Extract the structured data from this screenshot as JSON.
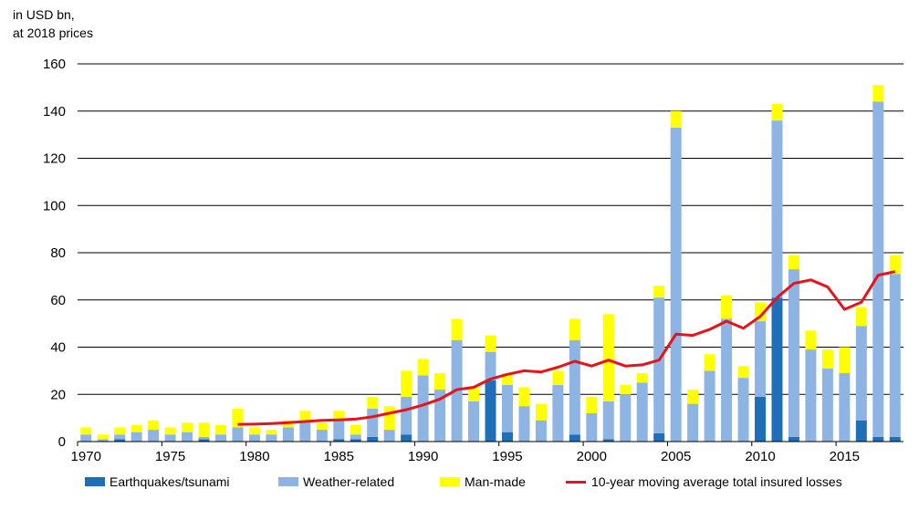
{
  "chart_data": {
    "type": "bar",
    "stacked": true,
    "unit_line1": "in USD bn,",
    "unit_line2": "at 2018 prices",
    "ylim": [
      0,
      160
    ],
    "yticks": [
      "0",
      "20",
      "40",
      "60",
      "80",
      "100",
      "120",
      "140",
      "160"
    ],
    "ytick_values": [
      0,
      20,
      40,
      60,
      80,
      100,
      120,
      140,
      160
    ],
    "xticks": [
      "1970",
      "1975",
      "1980",
      "1985",
      "1990",
      "1995",
      "2000",
      "2005",
      "2010",
      "2015"
    ],
    "xtick_years": [
      1970,
      1975,
      1980,
      1985,
      1990,
      1995,
      2000,
      2005,
      2010,
      2015
    ],
    "years": [
      1970,
      1971,
      1972,
      1973,
      1974,
      1975,
      1976,
      1977,
      1978,
      1979,
      1980,
      1981,
      1982,
      1983,
      1984,
      1985,
      1986,
      1987,
      1988,
      1989,
      1990,
      1991,
      1992,
      1993,
      1994,
      1995,
      1996,
      1997,
      1998,
      1999,
      2000,
      2001,
      2002,
      2003,
      2004,
      2005,
      2006,
      2007,
      2008,
      2009,
      2010,
      2011,
      2012,
      2013,
      2014,
      2015,
      2016,
      2017,
      2018
    ],
    "series": [
      {
        "name": "Earthquakes/tsunami",
        "color": "#1f6fb8",
        "values": [
          0,
          0,
          1,
          0,
          0,
          0,
          0,
          1,
          0,
          0,
          0,
          0,
          0,
          0,
          0,
          1,
          1,
          2,
          0,
          3,
          0,
          0,
          0,
          0,
          26,
          4,
          0,
          0,
          0,
          3,
          0,
          1,
          0,
          0,
          3.5,
          0,
          0,
          0,
          0,
          0,
          19,
          61,
          2,
          0,
          0,
          0,
          9,
          2,
          2
        ]
      },
      {
        "name": "Weather-related",
        "color": "#8eb4e3",
        "values": [
          3,
          1,
          2,
          4,
          5,
          3,
          4,
          1,
          3,
          6,
          3,
          3,
          6,
          8,
          5,
          8,
          2,
          12,
          5,
          16,
          28,
          22,
          43,
          17,
          12,
          20,
          15,
          9,
          24,
          40,
          12,
          16,
          20,
          25,
          57.5,
          133,
          16,
          30,
          52,
          27,
          32,
          75,
          71,
          39,
          31,
          29,
          40,
          142,
          69
        ]
      },
      {
        "name": "Man-made",
        "color": "#ffff00",
        "values": [
          3,
          2,
          3,
          3,
          4,
          3,
          4,
          6,
          4,
          8,
          3,
          2,
          3,
          5,
          3,
          4,
          4,
          5,
          10,
          11,
          7,
          7,
          9,
          6,
          7,
          5,
          8,
          7,
          6,
          9,
          7,
          37,
          4,
          4,
          5,
          7,
          6,
          7,
          10,
          5,
          8,
          7,
          6,
          8,
          8,
          11,
          8,
          7,
          8
        ]
      },
      {
        "name": "10-year moving average total insured losses",
        "color": "#e8121a",
        "type": "line",
        "start_year": 1979,
        "values": [
          7.3,
          7.4,
          7.6,
          8.0,
          8.5,
          9.0,
          9.2,
          9.5,
          10.5,
          12.0,
          13.5,
          15.5,
          18.0,
          22.0,
          23.0,
          26.5,
          28.5,
          30.0,
          29.5,
          31.5,
          34.0,
          32.0,
          34.5,
          32.0,
          32.5,
          34.5,
          45.5,
          45.0,
          47.5,
          51.0,
          48.0,
          53.0,
          61.0,
          67.0,
          68.5,
          65.5,
          56.0,
          59.0,
          70.5,
          72.0
        ]
      }
    ],
    "legend": [
      "Earthquakes/tsunami",
      "Weather-related",
      "Man-made",
      "10-year moving average total insured losses"
    ]
  }
}
